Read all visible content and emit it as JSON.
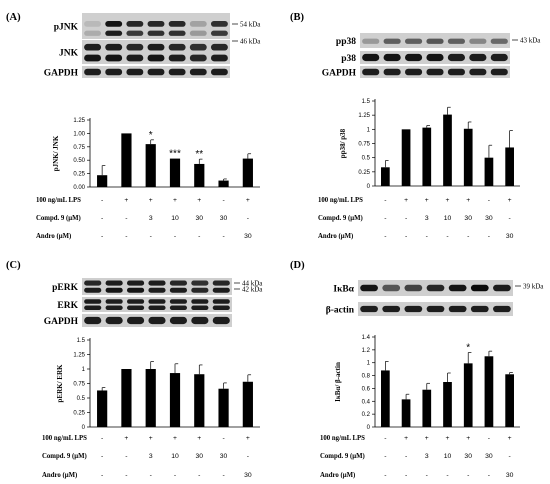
{
  "panels": [
    {
      "id": "A",
      "label": "(A)",
      "blots": [
        {
          "name": "pJNK",
          "bands": 2
        },
        {
          "name": "JNK",
          "bands": 2
        },
        {
          "name": "GAPDH",
          "bands": 1
        }
      ],
      "markers": [
        "54 kDa",
        "46 kDa"
      ],
      "conditions": [
        {
          "label": "100 ng/mL LPS",
          "values": [
            "-",
            "+",
            "+",
            "+",
            "+",
            "-",
            "+"
          ]
        },
        {
          "label": "Compd. 9 (μM)",
          "values": [
            "-",
            "-",
            "3",
            "10",
            "30",
            "30",
            "-"
          ]
        },
        {
          "label": "Andro (μM)",
          "values": [
            "-",
            "-",
            "-",
            "-",
            "-",
            "-",
            "30"
          ]
        }
      ]
    },
    {
      "id": "B",
      "label": "(B)",
      "blots": [
        {
          "name": "pp38",
          "bands": 1
        },
        {
          "name": "p38",
          "bands": 1
        },
        {
          "name": "GAPDH",
          "bands": 1
        }
      ],
      "markers": [
        "43 kDa"
      ],
      "conditions": [
        {
          "label": "100 ng/mL LPS",
          "values": [
            "-",
            "+",
            "+",
            "+",
            "+",
            "-",
            "+"
          ]
        },
        {
          "label": "Compd. 9 (μM)",
          "values": [
            "-",
            "-",
            "3",
            "10",
            "30",
            "30",
            "-"
          ]
        },
        {
          "label": "Andro (μM)",
          "values": [
            "-",
            "-",
            "-",
            "-",
            "-",
            "-",
            "30"
          ]
        }
      ]
    },
    {
      "id": "C",
      "label": "(C)",
      "blots": [
        {
          "name": "pERK",
          "bands": 2
        },
        {
          "name": "ERK",
          "bands": 2
        },
        {
          "name": "GAPDH",
          "bands": 1
        }
      ],
      "markers": [
        "44 kDa",
        "42 kDa"
      ],
      "conditions": [
        {
          "label": "100 ng/mL LPS",
          "values": [
            "-",
            "+",
            "+",
            "+",
            "+",
            "-",
            "+"
          ]
        },
        {
          "label": "Compd. 9 (μM)",
          "values": [
            "-",
            "-",
            "3",
            "10",
            "30",
            "30",
            "-"
          ]
        },
        {
          "label": "Andro (μM)",
          "values": [
            "-",
            "-",
            "-",
            "-",
            "-",
            "-",
            "30"
          ]
        }
      ]
    },
    {
      "id": "D",
      "label": "(D)",
      "blots": [
        {
          "name": "IκBα",
          "bands": 1
        },
        {
          "name": "β-actin",
          "bands": 1
        }
      ],
      "markers": [
        "39 kDa"
      ],
      "conditions": [
        {
          "label": "100 ng/mL LPS",
          "values": [
            "-",
            "+",
            "+",
            "+",
            "+",
            "-",
            "+"
          ]
        },
        {
          "label": "Compd. 9 (μM)",
          "values": [
            "-",
            "-",
            "3",
            "10",
            "30",
            "30",
            "-"
          ]
        },
        {
          "label": "Andro (μM)",
          "values": [
            "-",
            "-",
            "-",
            "-",
            "-",
            "-",
            "30"
          ]
        }
      ]
    }
  ],
  "chart_data": [
    {
      "type": "bar",
      "panel": "A",
      "ylabel": "pJNK/ JNK",
      "ylim": [
        0,
        1.25
      ],
      "yticks": [
        "0.00",
        "0.25",
        "0.50",
        "0.75",
        "1.00",
        "1.25"
      ],
      "values": [
        0.22,
        1.0,
        0.8,
        0.53,
        0.43,
        0.12,
        0.53
      ],
      "errors": [
        0.18,
        0.0,
        0.08,
        0.0,
        0.09,
        0.03,
        0.09
      ],
      "significance": [
        "",
        "",
        "*",
        "***",
        "**",
        "",
        ""
      ]
    },
    {
      "type": "bar",
      "panel": "B",
      "ylabel": "pp38/ p38",
      "ylim": [
        0,
        1.5
      ],
      "yticks": [
        "0",
        "0.25",
        "0.5",
        "0.75",
        "1",
        "1.25",
        "1.5"
      ],
      "values": [
        0.33,
        1.0,
        1.03,
        1.26,
        1.01,
        0.5,
        0.68
      ],
      "errors": [
        0.12,
        0.0,
        0.04,
        0.13,
        0.12,
        0.22,
        0.3
      ],
      "significance": [
        "",
        "",
        "",
        "",
        "",
        "",
        ""
      ]
    },
    {
      "type": "bar",
      "panel": "C",
      "ylabel": "pERK/ ERK",
      "ylim": [
        0,
        1.5
      ],
      "yticks": [
        "0",
        "0.25",
        "0.5",
        "0.75",
        "1",
        "1.25",
        "1.5"
      ],
      "values": [
        0.63,
        1.0,
        1.0,
        0.93,
        0.91,
        0.66,
        0.78
      ],
      "errors": [
        0.05,
        0.0,
        0.13,
        0.16,
        0.16,
        0.1,
        0.12
      ],
      "significance": [
        "",
        "",
        "",
        "",
        "",
        "",
        ""
      ]
    },
    {
      "type": "bar",
      "panel": "D",
      "ylabel": "IκBα/ β-actin",
      "ylim": [
        0,
        1.4
      ],
      "yticks": [
        "0",
        "0.2",
        "0.4",
        "0.6",
        "0.8",
        "1",
        "1.2",
        "1.4"
      ],
      "values": [
        0.88,
        0.43,
        0.58,
        0.7,
        0.99,
        1.1,
        0.82
      ],
      "errors": [
        0.14,
        0.08,
        0.1,
        0.14,
        0.17,
        0.08,
        0.03
      ],
      "significance": [
        "",
        "",
        "",
        "",
        "*",
        "",
        ""
      ]
    }
  ]
}
